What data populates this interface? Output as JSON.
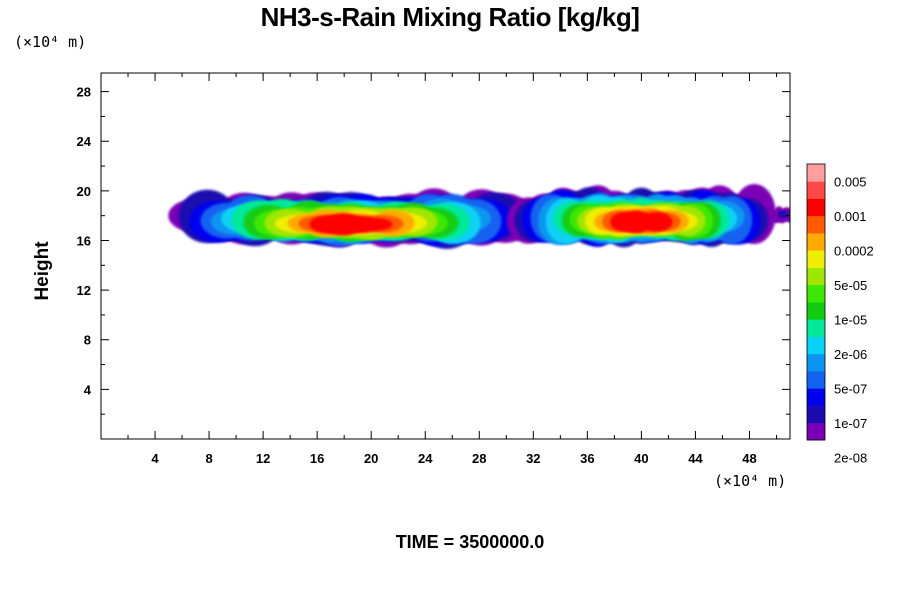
{
  "chart_data": {
    "type": "heatmap",
    "title": "NH3-s-Rain Mixing Ratio [kg/kg]",
    "xlabel": "",
    "ylabel": "Height",
    "x_unit_label": "(×10⁴ m)",
    "y_unit_label": "(×10⁴ m)",
    "x_ticks": [
      "4",
      "8",
      "12",
      "16",
      "20",
      "24",
      "28",
      "32",
      "36",
      "40",
      "44",
      "48"
    ],
    "y_ticks": [
      "4",
      "8",
      "12",
      "16",
      "20",
      "24",
      "28"
    ],
    "xlim": [
      0,
      51
    ],
    "ylim": [
      0,
      29.5
    ],
    "colorbar": {
      "labels": [
        "0.005",
        "0.001",
        "0.0002",
        "5e-05",
        "1e-05",
        "2e-06",
        "5e-07",
        "1e-07",
        "2e-08"
      ],
      "colors": [
        "#7b00b5",
        "#1a0ab0",
        "#0000ee",
        "#1462f0",
        "#0a96f0",
        "#08d2f5",
        "#00e89a",
        "#12cc12",
        "#3ee800",
        "#a0e600",
        "#f0ee00",
        "#ffaa00",
        "#ff5a00",
        "#ff0000",
        "#ff4848",
        "#ff9e9e"
      ]
    },
    "cloud_regions": [
      {
        "x": [
          0.2,
          24.8
        ],
        "y": [
          15.8,
          19.7
        ],
        "peak_x": 18.5,
        "peak_y": 17.3,
        "peak_level": "0.0002"
      },
      {
        "x": [
          27.2,
          45.2
        ],
        "y": [
          15.8,
          19.9
        ],
        "peak_x": 40.0,
        "peak_y": 17.5,
        "peak_level": "0.0002"
      },
      {
        "x": [
          49.8,
          51.0
        ],
        "y": [
          17.6,
          18.6
        ],
        "peak_x": 50.5,
        "peak_y": 18.1,
        "peak_level": "2e-08"
      }
    ]
  },
  "footer": {
    "time_label": "TIME = 3500000.0"
  }
}
